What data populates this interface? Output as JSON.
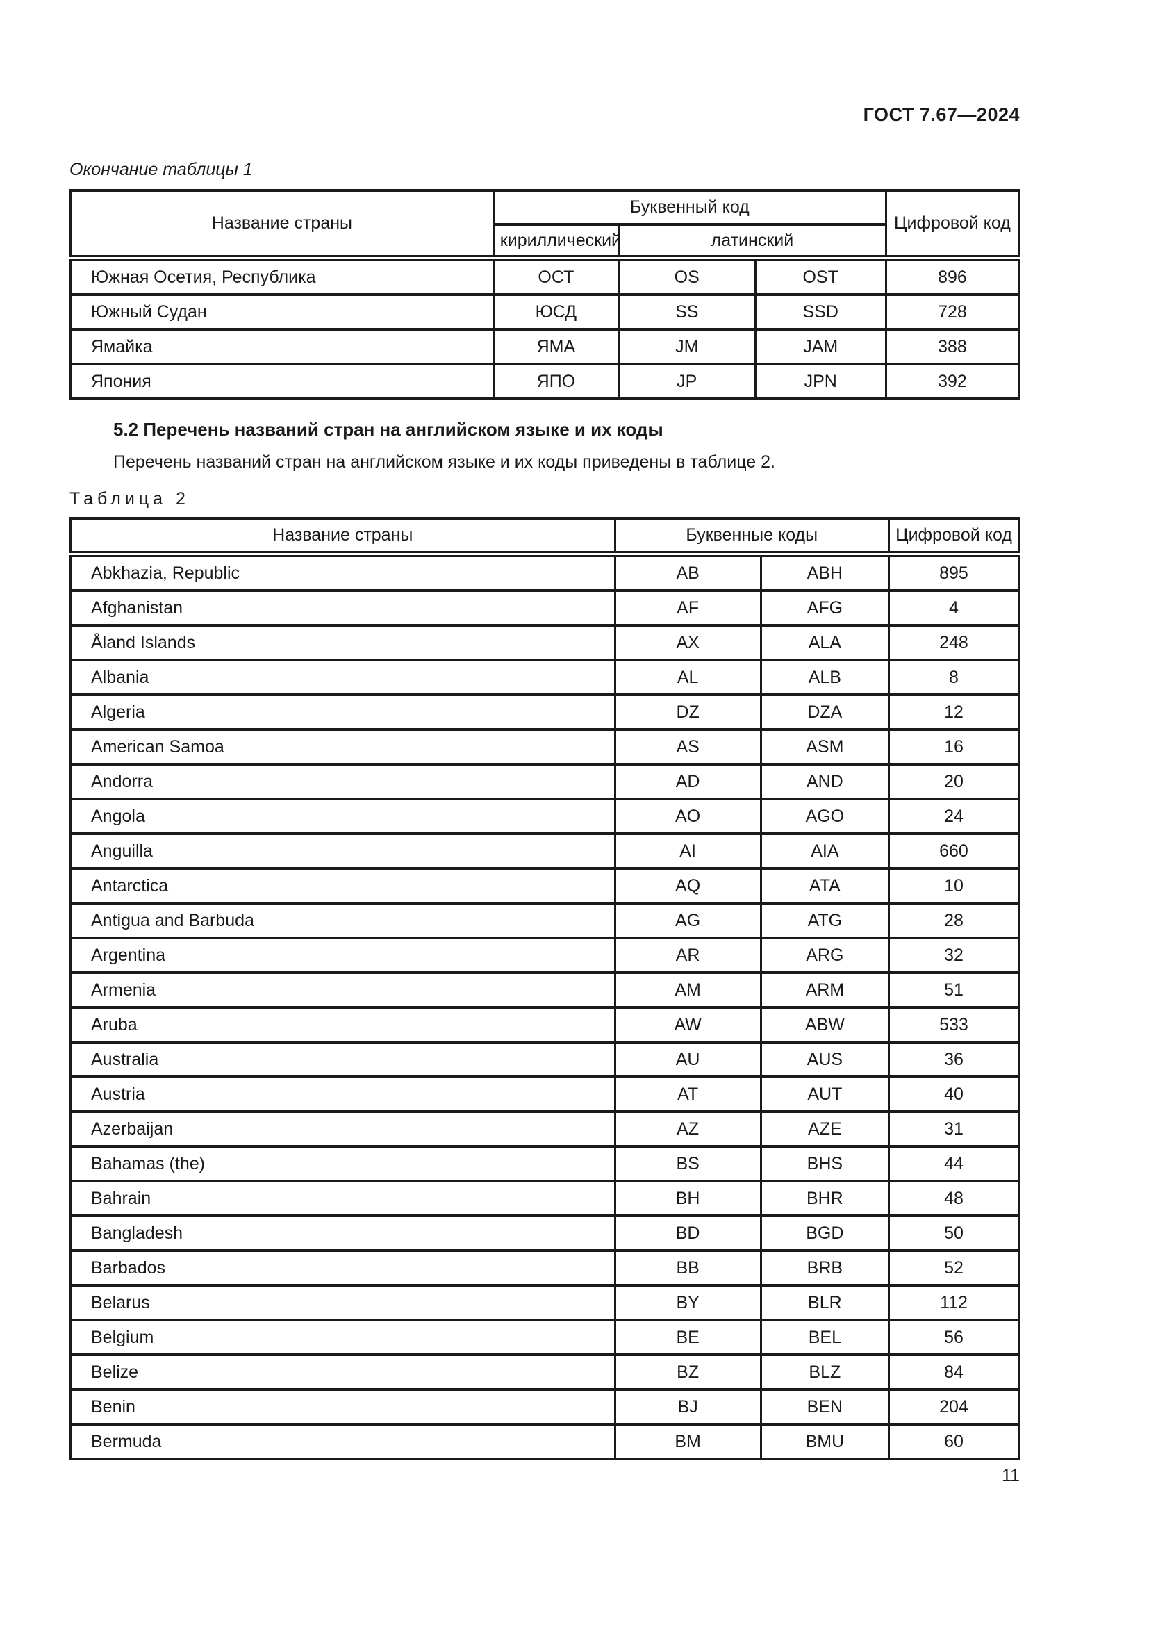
{
  "page": {
    "doc_code": "ГОСТ 7.67—2024",
    "table1_caption": "Окончание таблицы 1",
    "section_heading": "5.2 Перечень названий стран на английском языке и их коды",
    "paragraph": "Перечень названий стран на английском языке и их коды приведены в таблице 2.",
    "table2_caption": "Таблица 2",
    "page_number": "11"
  },
  "table1": {
    "headers": {
      "country": "Название страны",
      "letter_code": "Буквенный код",
      "cyrillic": "кириллический",
      "latin": "латинский",
      "numeric_code": "Цифровой код"
    },
    "rows": [
      [
        "Южная Осетия, Республика",
        "ОСТ",
        "OS",
        "OST",
        "896"
      ],
      [
        "Южный Судан",
        "ЮСД",
        "SS",
        "SSD",
        "728"
      ],
      [
        "Ямайка",
        "ЯМА",
        "JM",
        "JAM",
        "388"
      ],
      [
        "Япония",
        "ЯПО",
        "JP",
        "JPN",
        "392"
      ]
    ]
  },
  "table2": {
    "headers": {
      "country": "Название страны",
      "letter_codes": "Буквенные коды",
      "numeric_code": "Цифровой код"
    },
    "rows": [
      [
        "Abkhazia, Republic",
        "AB",
        "ABH",
        "895"
      ],
      [
        "Afghanistan",
        "AF",
        "AFG",
        "4"
      ],
      [
        "Åland Islands",
        "AX",
        "ALA",
        "248"
      ],
      [
        "Albania",
        "AL",
        "ALB",
        "8"
      ],
      [
        "Algeria",
        "DZ",
        "DZA",
        "12"
      ],
      [
        "American Samoa",
        "AS",
        "ASM",
        "16"
      ],
      [
        "Andorra",
        "AD",
        "AND",
        "20"
      ],
      [
        "Angola",
        "AO",
        "AGO",
        "24"
      ],
      [
        "Anguilla",
        "AI",
        "AIA",
        "660"
      ],
      [
        "Antarctica",
        "AQ",
        "ATA",
        "10"
      ],
      [
        "Antigua and Barbuda",
        "AG",
        "ATG",
        "28"
      ],
      [
        "Argentina",
        "AR",
        "ARG",
        "32"
      ],
      [
        "Armenia",
        "AM",
        "ARM",
        "51"
      ],
      [
        "Aruba",
        "AW",
        "ABW",
        "533"
      ],
      [
        "Australia",
        "AU",
        "AUS",
        "36"
      ],
      [
        "Austria",
        "AT",
        "AUT",
        "40"
      ],
      [
        "Azerbaijan",
        "AZ",
        "AZE",
        "31"
      ],
      [
        "Bahamas (the)",
        "BS",
        "BHS",
        "44"
      ],
      [
        "Bahrain",
        "BH",
        "BHR",
        "48"
      ],
      [
        "Bangladesh",
        "BD",
        "BGD",
        "50"
      ],
      [
        "Barbados",
        "BB",
        "BRB",
        "52"
      ],
      [
        "Belarus",
        "BY",
        "BLR",
        "112"
      ],
      [
        "Belgium",
        "BE",
        "BEL",
        "56"
      ],
      [
        "Belize",
        "BZ",
        "BLZ",
        "84"
      ],
      [
        "Benin",
        "BJ",
        "BEN",
        "204"
      ],
      [
        "Bermuda",
        "BM",
        "BMU",
        "60"
      ]
    ]
  }
}
